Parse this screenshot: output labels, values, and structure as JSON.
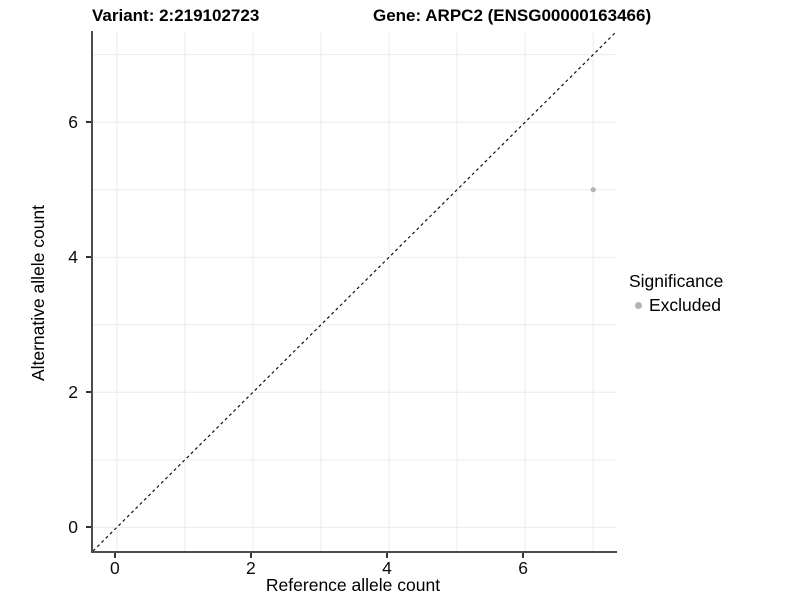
{
  "header": {
    "variant_title": "Variant: 2:219102723",
    "gene_title": "Gene: ARPC2 (ENSG00000163466)"
  },
  "chart_data": {
    "type": "scatter",
    "title": "Variant: 2:219102723   Gene: ARPC2 (ENSG00000163466)",
    "xlabel": "Reference allele count",
    "ylabel": "Alternative allele count",
    "xlim": [
      -0.35,
      7.35
    ],
    "ylim": [
      -0.35,
      7.35
    ],
    "x_ticks": [
      0,
      2,
      4,
      6
    ],
    "y_ticks": [
      0,
      2,
      4,
      6
    ],
    "grid_lines": [
      0,
      1,
      2,
      3,
      4,
      5,
      6,
      7
    ],
    "grid": true,
    "series": [
      {
        "name": "Excluded",
        "points": [
          {
            "x": 7,
            "y": 5
          }
        ]
      }
    ],
    "reference_line": {
      "kind": "identity y=x",
      "style": "dashed",
      "x1": -0.35,
      "y1": -0.35,
      "x2": 7.35,
      "y2": 7.35
    },
    "legend_position": "right",
    "colors": {
      "excluded_point": "#b4b4b4",
      "gridline": "#ebebeb",
      "axis_line": "#4d4d4d",
      "tick": "#333333",
      "reference_line": "#111111",
      "text": "#000000"
    }
  },
  "legend": {
    "title": "Significance",
    "items": [
      {
        "label": "Excluded",
        "color": "#b4b4b4"
      }
    ]
  }
}
